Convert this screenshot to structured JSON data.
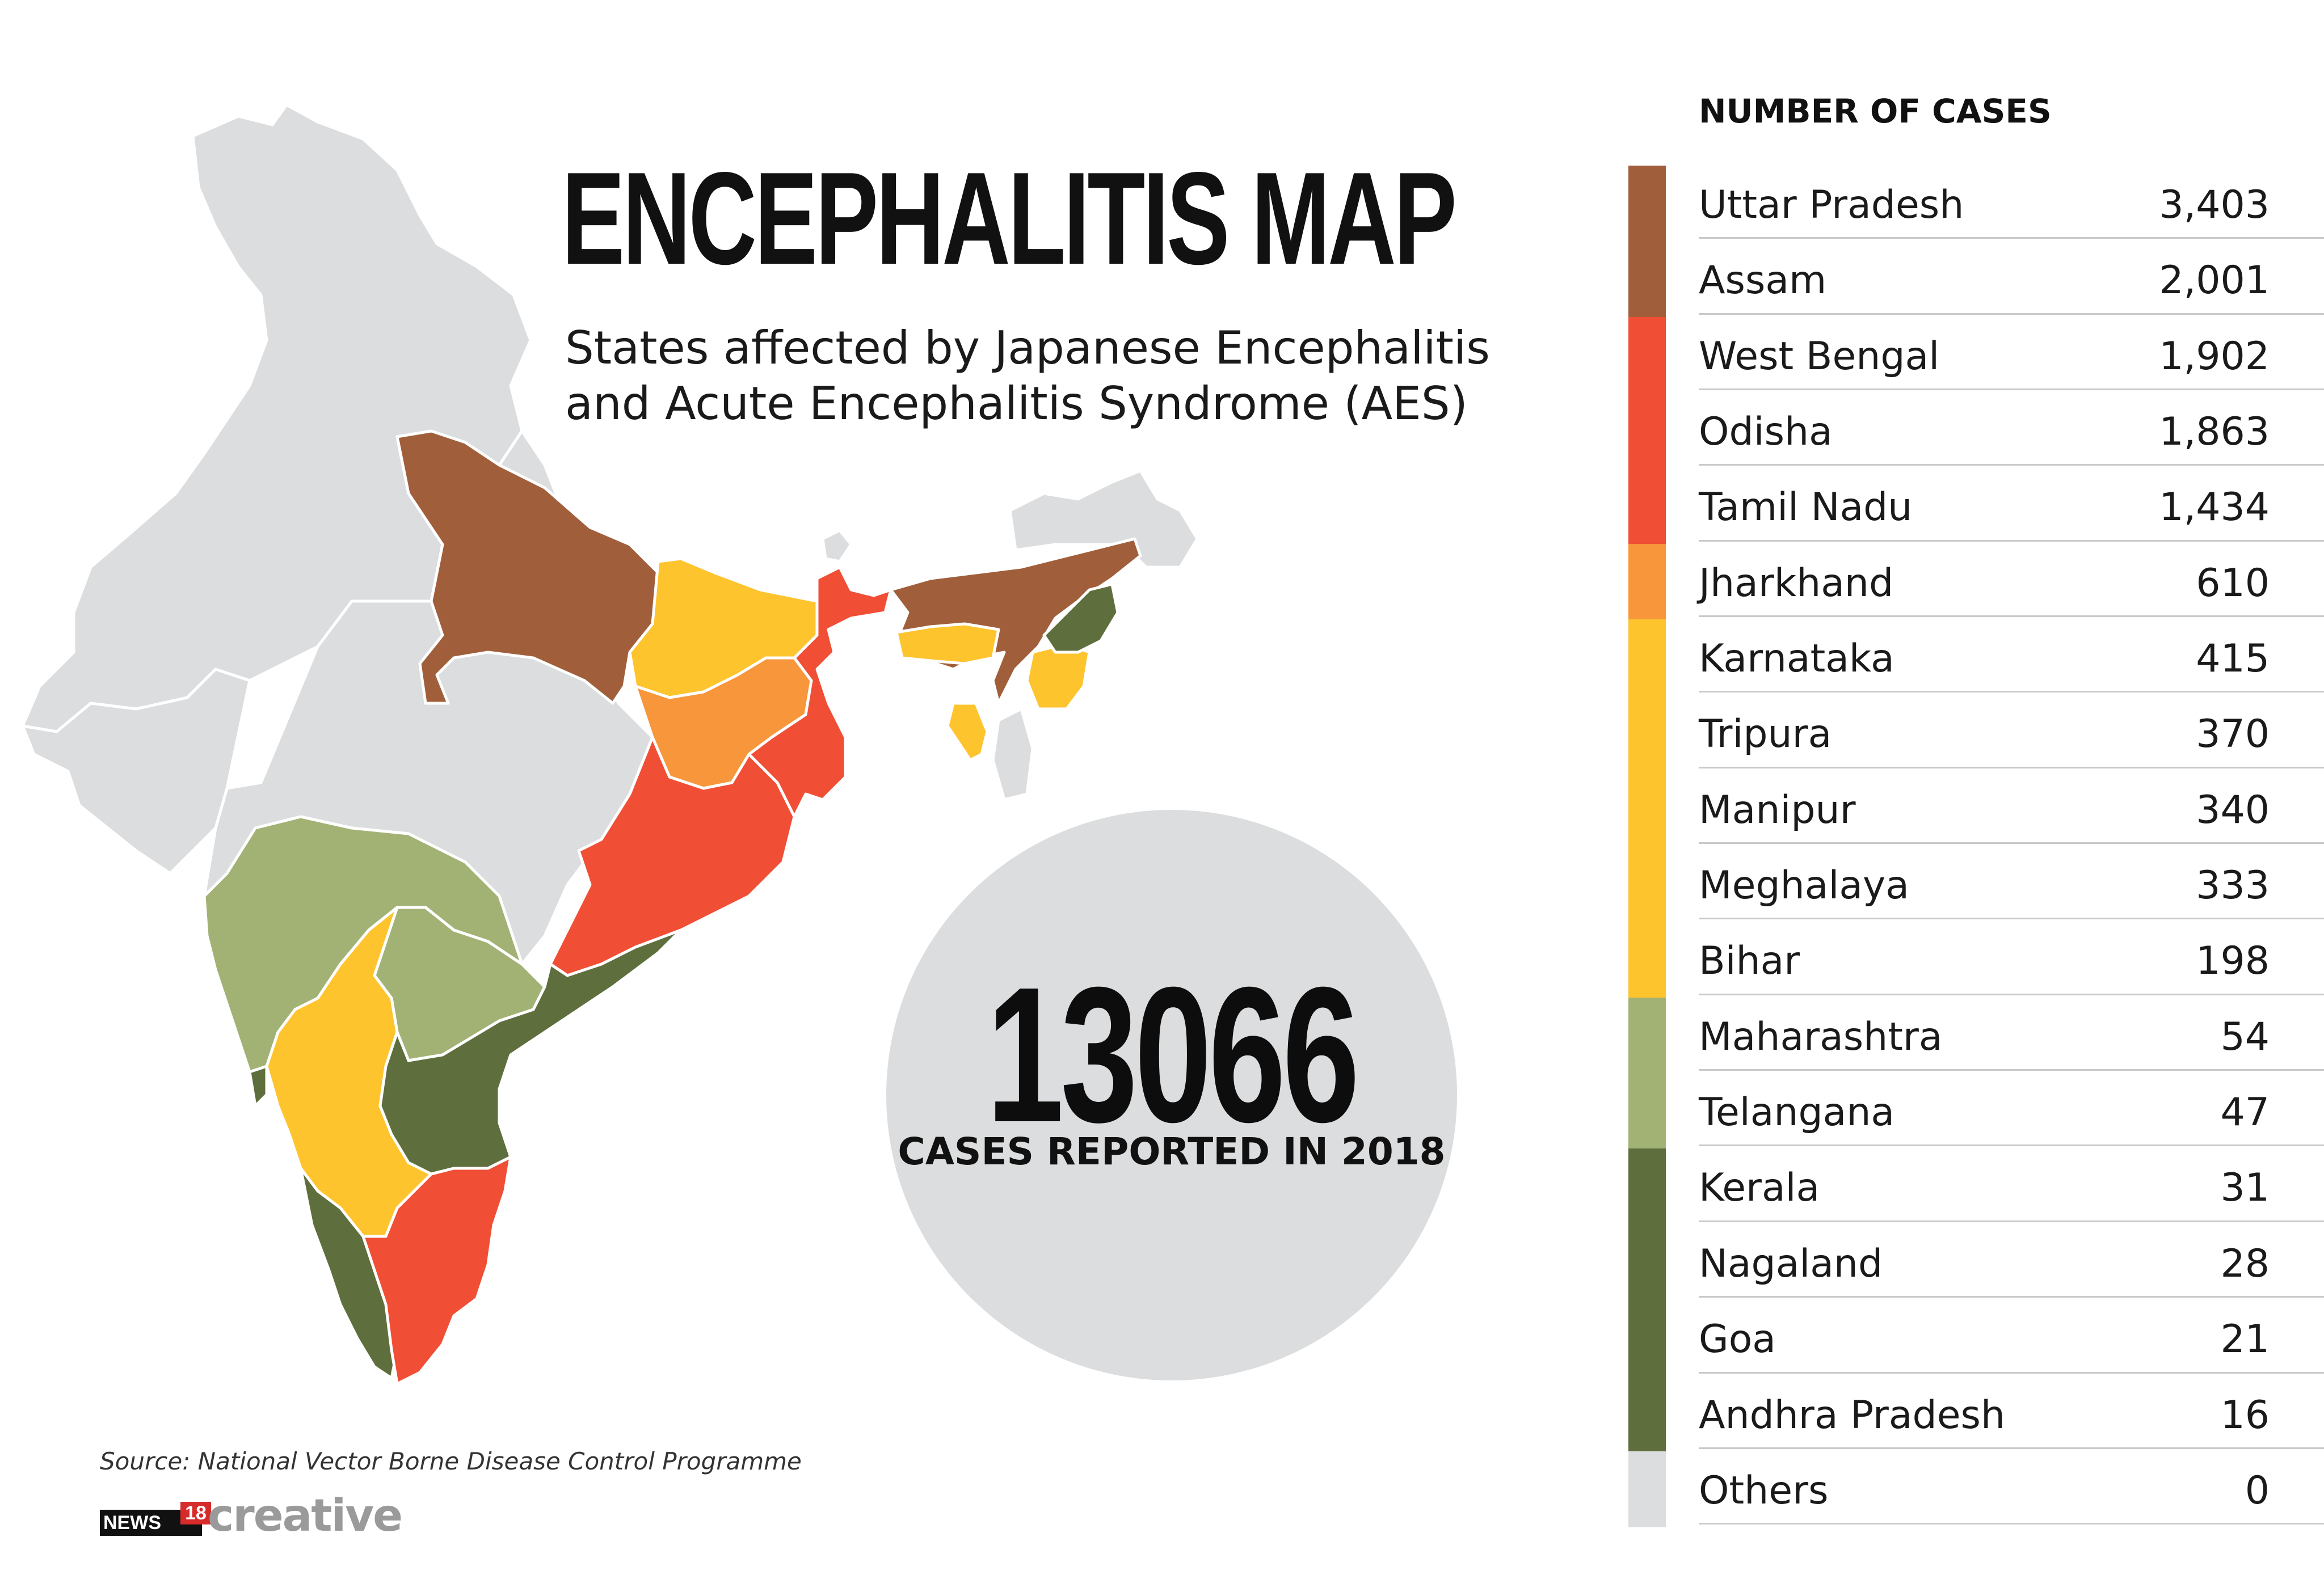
{
  "title": "ENCEPHALITIS MAP",
  "subtitle": "States affected by Japanese Encephalitis and Acute Encephalitis Syndrome (AES)",
  "total": {
    "value": "13066",
    "caption": "CASES REPORTED IN 2018"
  },
  "source": "Source: National Vector Borne Disease Control Programme",
  "brand": {
    "news": "NEWS",
    "number": "18",
    "name": "creative"
  },
  "colors": {
    "brown": "#a05f3a",
    "red": "#f04e35",
    "orange": "#f7963a",
    "yellow": "#fec42e",
    "light_green": "#a2b274",
    "dark_green": "#5e6e3c",
    "grey": "#dcddde"
  },
  "legend": {
    "heading": "NUMBER OF CASES",
    "items": [
      {
        "state": "Uttar Pradesh",
        "cases": "3,403",
        "color": "#a05f3a"
      },
      {
        "state": "Assam",
        "cases": "2,001",
        "color": "#a05f3a"
      },
      {
        "state": "West Bengal",
        "cases": "1,902",
        "color": "#f04e35"
      },
      {
        "state": "Odisha",
        "cases": "1,863",
        "color": "#f04e35"
      },
      {
        "state": "Tamil Nadu",
        "cases": "1,434",
        "color": "#f04e35"
      },
      {
        "state": "Jharkhand",
        "cases": "610",
        "color": "#f7963a"
      },
      {
        "state": "Karnataka",
        "cases": "415",
        "color": "#fec42e"
      },
      {
        "state": "Tripura",
        "cases": "370",
        "color": "#fec42e"
      },
      {
        "state": "Manipur",
        "cases": "340",
        "color": "#fec42e"
      },
      {
        "state": "Meghalaya",
        "cases": "333",
        "color": "#fec42e"
      },
      {
        "state": "Bihar",
        "cases": "198",
        "color": "#fec42e"
      },
      {
        "state": "Maharashtra",
        "cases": "54",
        "color": "#a2b274"
      },
      {
        "state": "Telangana",
        "cases": "47",
        "color": "#a2b274"
      },
      {
        "state": "Kerala",
        "cases": "31",
        "color": "#5e6e3c"
      },
      {
        "state": "Nagaland",
        "cases": "28",
        "color": "#5e6e3c"
      },
      {
        "state": "Goa",
        "cases": "21",
        "color": "#5e6e3c"
      },
      {
        "state": "Andhra Pradesh",
        "cases": "16",
        "color": "#5e6e3c"
      },
      {
        "state": "Others",
        "cases": "0",
        "color": "#dcddde"
      }
    ]
  }
}
